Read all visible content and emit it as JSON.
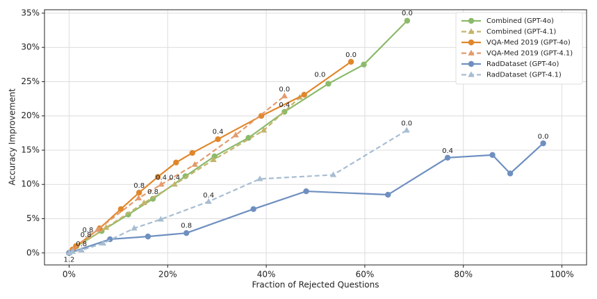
{
  "chart_data": {
    "type": "line",
    "xlabel": "Fraction of Rejected Questions",
    "ylabel": "Accuracy Improvement",
    "xlim": [
      -5,
      105
    ],
    "ylim": [
      -1.75,
      35.5
    ],
    "xticks": [
      {
        "value": 0,
        "label": "0%"
      },
      {
        "value": 20,
        "label": "20%"
      },
      {
        "value": 40,
        "label": "40%"
      },
      {
        "value": 60,
        "label": "60%"
      },
      {
        "value": 80,
        "label": "80%"
      },
      {
        "value": 100,
        "label": "100%"
      }
    ],
    "yticks": [
      {
        "value": 0,
        "label": "0%"
      },
      {
        "value": 5,
        "label": "5%"
      },
      {
        "value": 10,
        "label": "10%"
      },
      {
        "value": 15,
        "label": "15%"
      },
      {
        "value": 20,
        "label": "20%"
      },
      {
        "value": 25,
        "label": "25%"
      },
      {
        "value": 30,
        "label": "30%"
      },
      {
        "value": 35,
        "label": "35%"
      }
    ],
    "grid": true,
    "legend": "upper right",
    "series": [
      {
        "name": "Combined (GPT-4o)",
        "color": "#8cba6a",
        "marker": "circle",
        "dashed": false,
        "x": [
          0,
          0.7,
          1.5,
          6.6,
          12,
          17,
          23.6,
          29.5,
          36.4,
          43.7,
          52.6,
          59.8,
          68.6
        ],
        "y": [
          0,
          0.4,
          1.0,
          3.2,
          5.6,
          7.9,
          11.2,
          14.1,
          16.8,
          20.6,
          24.7,
          27.5,
          33.9
        ]
      },
      {
        "name": "Combined (GPT-4.1)",
        "color": "#c4b46c",
        "marker": "triangle",
        "dashed": true,
        "x": [
          0,
          1,
          7.5,
          15.2,
          21.4,
          29.3,
          39.5,
          46.8
        ],
        "y": [
          0,
          0.6,
          3.7,
          7.3,
          10.0,
          13.6,
          17.9,
          22.7
        ]
      },
      {
        "name": "VQA-Med 2019 (GPT-4o)",
        "color": "#e0872c",
        "marker": "circle",
        "dashed": false,
        "x": [
          0,
          0.7,
          1.4,
          6.2,
          10.5,
          14.2,
          18,
          21.7,
          25,
          30.2,
          39,
          47.7,
          57.2
        ],
        "y": [
          0,
          0.5,
          1.0,
          3.6,
          6.4,
          8.8,
          11.1,
          13.2,
          14.6,
          16.6,
          20,
          23.1,
          27.9
        ]
      },
      {
        "name": "VQA-Med 2019 (GPT-4.1)",
        "color": "#e39a6c",
        "marker": "triangle",
        "dashed": true,
        "x": [
          0,
          0.8,
          5.8,
          14.1,
          18.7,
          25.5,
          33.8,
          43.7
        ],
        "y": [
          0,
          0.5,
          3.4,
          8.0,
          10.0,
          12.9,
          17.2,
          22.9
        ]
      },
      {
        "name": "RadDataset (GPT-4o)",
        "color": "#6e8fc0",
        "marker": "circle",
        "dashed": false,
        "x": [
          0,
          8.3,
          16,
          23.8,
          37.4,
          48.1,
          64.7,
          76.8,
          85.9,
          89.5,
          96.2
        ],
        "y": [
          0,
          2.0,
          2.4,
          2.9,
          6.4,
          9.0,
          8.5,
          13.9,
          14.3,
          11.6,
          16.0
        ]
      },
      {
        "name": "RadDataset (GPT-4.1)",
        "color": "#a7bdd1",
        "marker": "triangle",
        "dashed": true,
        "x": [
          0,
          0.7,
          2.5,
          6.9,
          13.2,
          18.6,
          28.3,
          38.7,
          53.6,
          68.5
        ],
        "y": [
          0,
          0.2,
          0.4,
          1.4,
          3.6,
          4.9,
          7.5,
          10.8,
          11.4,
          17.9
        ]
      }
    ],
    "annotations": [
      {
        "text": "0.0",
        "x": 68.6,
        "y": 35.0
      },
      {
        "text": "0.0",
        "x": 57.2,
        "y": 28.9
      },
      {
        "text": "0.0",
        "x": 50.9,
        "y": 26.0
      },
      {
        "text": "0.0",
        "x": 43.7,
        "y": 23.9
      },
      {
        "text": "0.4",
        "x": 43.7,
        "y": 21.6
      },
      {
        "text": "0.4",
        "x": 30.2,
        "y": 17.7
      },
      {
        "text": "0.8",
        "x": 14.2,
        "y": 9.8
      },
      {
        "text": "0.4",
        "x": 18.7,
        "y": 11.0
      },
      {
        "text": "0.4",
        "x": 21.4,
        "y": 11.0
      },
      {
        "text": "0.8",
        "x": 17,
        "y": 8.9
      },
      {
        "text": "0.8",
        "x": 3.8,
        "y": 3.3
      },
      {
        "text": "0.8",
        "x": 3.4,
        "y": 2.6
      },
      {
        "text": "0.8",
        "x": 2.5,
        "y": 1.3
      },
      {
        "text": "1.2",
        "x": 0,
        "y": -1.0
      },
      {
        "text": "0.4",
        "x": 28.3,
        "y": 8.4
      },
      {
        "text": "0.8",
        "x": 23.8,
        "y": 4.0
      },
      {
        "text": "0.0",
        "x": 68.5,
        "y": 18.9
      },
      {
        "text": "0.4",
        "x": 76.8,
        "y": 14.9
      },
      {
        "text": "0.0",
        "x": 96.2,
        "y": 17.0
      }
    ]
  }
}
